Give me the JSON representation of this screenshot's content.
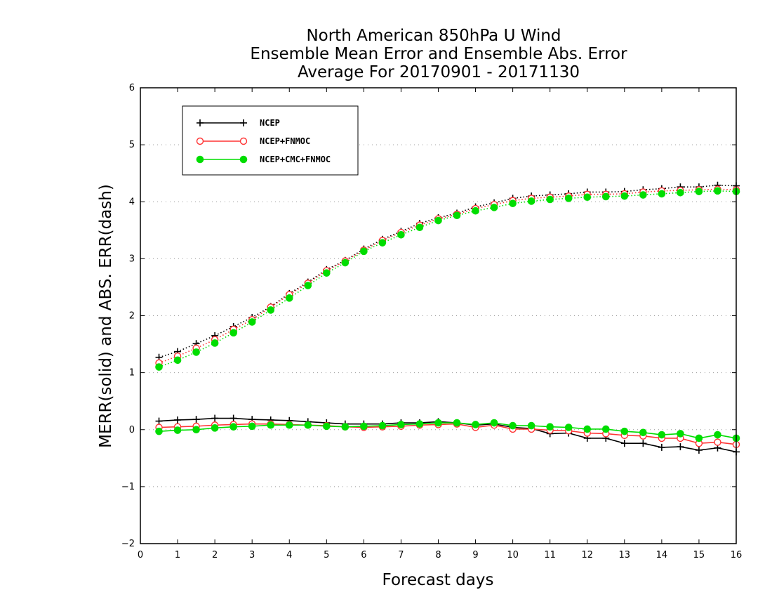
{
  "chart_data": {
    "type": "line",
    "title": [
      "North American 850hPa U Wind",
      "Ensemble Mean Error and Ensemble Abs. Error",
      "Average For 20170901 - 20171130"
    ],
    "xlabel": "Forecast days",
    "ylabel": "MERR(solid) and ABS. ERR(dash)",
    "xlim": [
      0,
      16
    ],
    "ylim": [
      -2,
      6
    ],
    "x_ticks": [
      0,
      1,
      2,
      3,
      4,
      5,
      6,
      7,
      8,
      9,
      10,
      11,
      12,
      13,
      14,
      15,
      16
    ],
    "y_ticks": [
      -2,
      -1,
      0,
      1,
      2,
      3,
      4,
      5,
      6
    ],
    "y_tick_labels": [
      "−2",
      "−1",
      "0",
      "1",
      "2",
      "3",
      "4",
      "5",
      "6"
    ],
    "grid": "horizontal dotted",
    "legend_position": "top-left",
    "x": [
      0.5,
      1,
      1.5,
      2,
      2.5,
      3,
      3.5,
      4,
      4.5,
      5,
      5.5,
      6,
      6.5,
      7,
      7.5,
      8,
      8.5,
      9,
      9.5,
      10,
      10.5,
      11,
      11.5,
      12,
      12.5,
      13,
      13.5,
      14,
      14.5,
      15,
      15.5,
      16
    ],
    "series": [
      {
        "name": "NCEP",
        "color": "#000000",
        "marker": "plus",
        "merr": [
          0.15,
          0.17,
          0.18,
          0.2,
          0.2,
          0.18,
          0.17,
          0.16,
          0.14,
          0.12,
          0.1,
          0.1,
          0.1,
          0.12,
          0.12,
          0.14,
          0.12,
          0.08,
          0.1,
          0.04,
          0.02,
          -0.07,
          -0.06,
          -0.15,
          -0.15,
          -0.24,
          -0.24,
          -0.31,
          -0.3,
          -0.36,
          -0.32,
          -0.39
        ],
        "abs_err": [
          1.27,
          1.37,
          1.51,
          1.65,
          1.81,
          1.97,
          2.16,
          2.39,
          2.59,
          2.81,
          2.97,
          3.17,
          3.34,
          3.48,
          3.62,
          3.72,
          3.8,
          3.91,
          3.98,
          4.06,
          4.1,
          4.12,
          4.14,
          4.17,
          4.17,
          4.18,
          4.21,
          4.23,
          4.26,
          4.26,
          4.29,
          4.28
        ]
      },
      {
        "name": "NCEP+FNMOC",
        "color": "#ff3333",
        "marker": "open-circle",
        "merr": [
          0.04,
          0.05,
          0.06,
          0.08,
          0.09,
          0.1,
          0.1,
          0.09,
          0.08,
          0.07,
          0.05,
          0.04,
          0.05,
          0.06,
          0.08,
          0.09,
          0.1,
          0.04,
          0.08,
          0.01,
          0.01,
          -0.01,
          -0.02,
          -0.06,
          -0.07,
          -0.1,
          -0.11,
          -0.15,
          -0.15,
          -0.24,
          -0.22,
          -0.26
        ],
        "abs_err": [
          1.17,
          1.29,
          1.43,
          1.58,
          1.76,
          1.93,
          2.15,
          2.37,
          2.57,
          2.79,
          2.96,
          3.15,
          3.32,
          3.46,
          3.59,
          3.7,
          3.78,
          3.88,
          3.95,
          4.02,
          4.06,
          4.08,
          4.1,
          4.13,
          4.13,
          4.14,
          4.17,
          4.19,
          4.2,
          4.21,
          4.22,
          4.21
        ]
      },
      {
        "name": "NCEP+CMC+FNMOC",
        "color": "#00dd00",
        "marker": "filled-circle",
        "merr": [
          -0.03,
          -0.01,
          0.0,
          0.03,
          0.05,
          0.06,
          0.08,
          0.08,
          0.08,
          0.06,
          0.05,
          0.06,
          0.07,
          0.09,
          0.1,
          0.12,
          0.12,
          0.09,
          0.12,
          0.07,
          0.07,
          0.05,
          0.04,
          0.01,
          0.01,
          -0.03,
          -0.05,
          -0.09,
          -0.07,
          -0.15,
          -0.09,
          -0.15
        ],
        "abs_err": [
          1.1,
          1.22,
          1.36,
          1.52,
          1.7,
          1.89,
          2.1,
          2.31,
          2.53,
          2.75,
          2.93,
          3.13,
          3.28,
          3.42,
          3.55,
          3.67,
          3.76,
          3.84,
          3.9,
          3.97,
          4.01,
          4.04,
          4.06,
          4.08,
          4.09,
          4.1,
          4.12,
          4.14,
          4.16,
          4.18,
          4.19,
          4.18
        ]
      }
    ]
  }
}
